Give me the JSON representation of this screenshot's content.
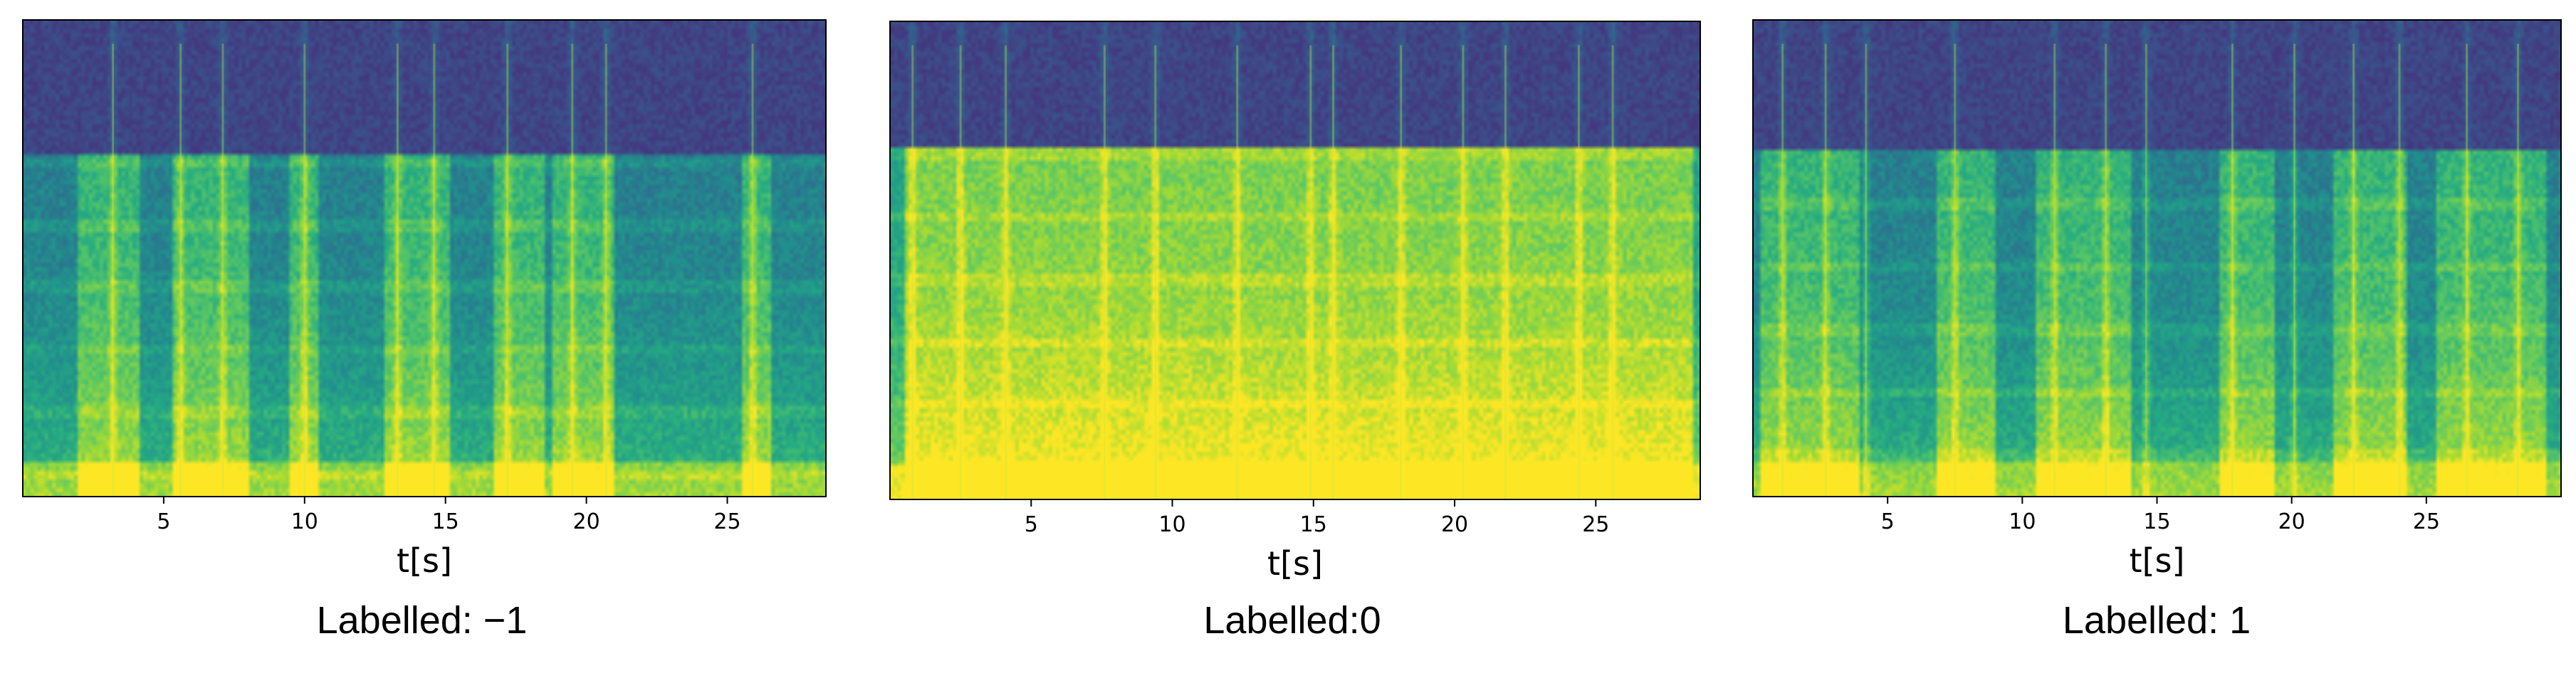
{
  "chart_data": [
    {
      "type": "heatmap",
      "title": "",
      "xlabel": "t[s]",
      "ylabel": "",
      "caption": "Labelled: −1",
      "x_ticks": [
        5,
        10,
        15,
        20,
        25
      ],
      "x_tick_labels": [
        "5",
        "10",
        "15",
        "20",
        "25"
      ],
      "xlim": [
        0,
        28.5
      ],
      "colormap": "viridis",
      "grid": false,
      "active_segments_s": [
        [
          2.0,
          4.2
        ],
        [
          5.3,
          8.0
        ],
        [
          9.5,
          10.5
        ],
        [
          12.8,
          15.2
        ],
        [
          16.7,
          18.5
        ],
        [
          18.8,
          21.0
        ],
        [
          25.5,
          26.6
        ]
      ],
      "strong_events_s": [
        3.2,
        5.6,
        7.1,
        10.0,
        13.3,
        14.6,
        17.2,
        19.5,
        20.7,
        25.9
      ]
    },
    {
      "type": "heatmap",
      "title": "",
      "xlabel": "t[s]",
      "ylabel": "",
      "caption": "Labelled:0",
      "x_ticks": [
        5,
        10,
        15,
        20,
        25
      ],
      "x_tick_labels": [
        "5",
        "10",
        "15",
        "20",
        "25"
      ],
      "xlim": [
        0,
        28.7
      ],
      "colormap": "viridis",
      "grid": false,
      "active_segments_s": [
        [
          0.5,
          28.5
        ]
      ],
      "strong_events_s": [
        0.8,
        2.5,
        4.1,
        7.6,
        9.4,
        12.3,
        14.9,
        15.7,
        18.1,
        20.3,
        21.8,
        24.4,
        25.6
      ]
    },
    {
      "type": "heatmap",
      "title": "",
      "xlabel": "t[s]",
      "ylabel": "",
      "caption": "Labelled: 1",
      "x_ticks": [
        5,
        10,
        15,
        20,
        25
      ],
      "x_tick_labels": [
        "5",
        "10",
        "15",
        "20",
        "25"
      ],
      "xlim": [
        0,
        30
      ],
      "colormap": "viridis",
      "grid": false,
      "active_segments_s": [
        [
          0.3,
          4.0
        ],
        [
          6.8,
          9.0
        ],
        [
          10.5,
          14.0
        ],
        [
          17.3,
          19.3
        ],
        [
          21.6,
          24.3
        ],
        [
          25.4,
          29.5
        ]
      ],
      "strong_events_s": [
        1.1,
        2.7,
        4.2,
        7.5,
        11.2,
        13.1,
        14.6,
        17.8,
        20.1,
        22.3,
        24.0,
        26.5,
        28.4
      ]
    }
  ]
}
